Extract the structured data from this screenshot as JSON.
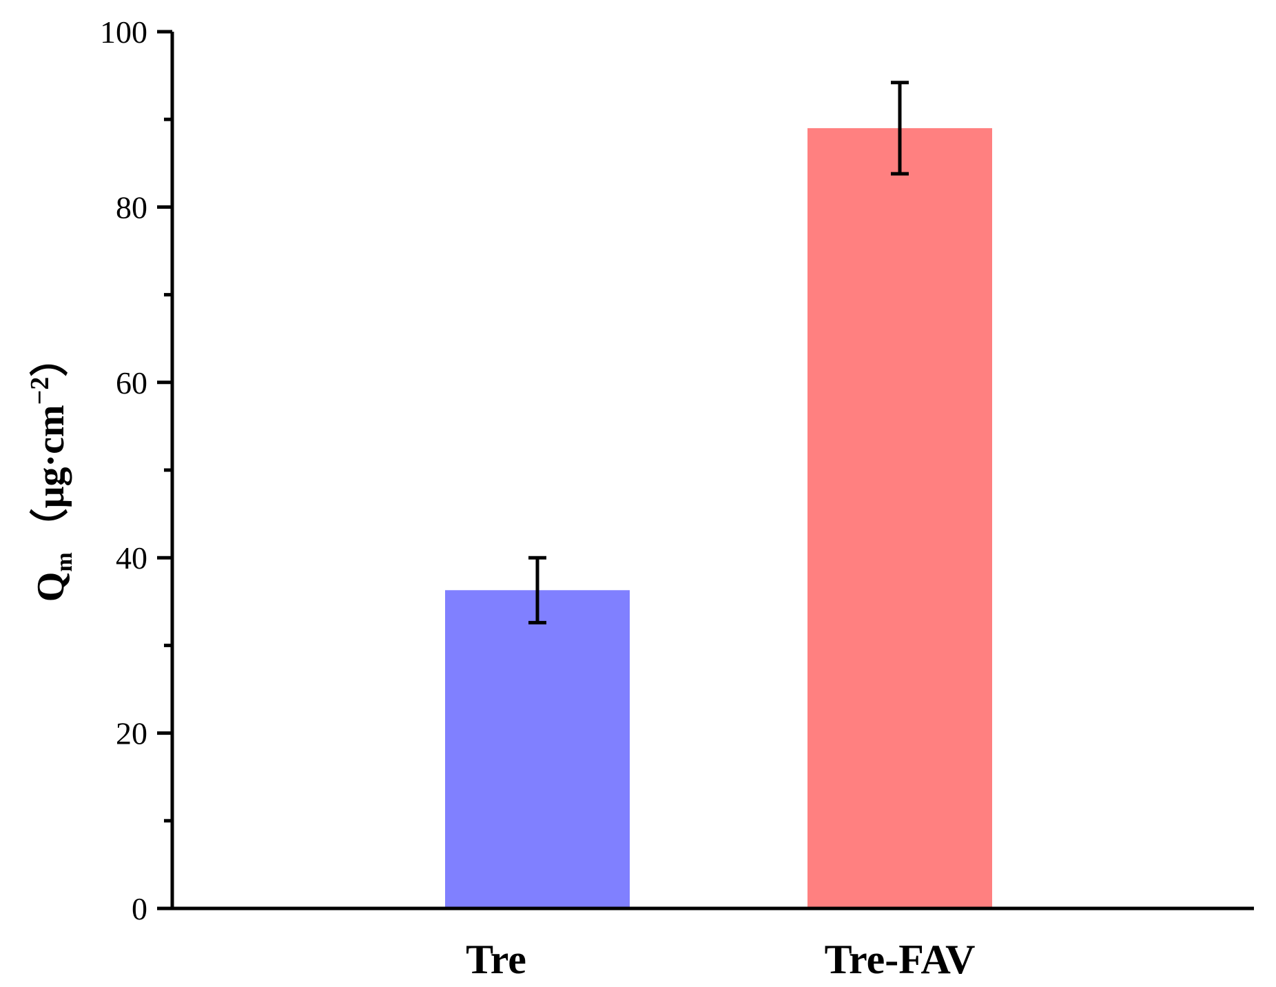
{
  "chart_data": {
    "type": "bar",
    "title": "",
    "xlabel": "",
    "ylabel": {
      "symbol": "Q",
      "subscript": "m",
      "unit_open": "（μg·cm",
      "unit_exponent": "−2",
      "unit_close": "）"
    },
    "categories": [
      "Tre",
      "Tre-FAV"
    ],
    "values": [
      36.3,
      89.0
    ],
    "errors": [
      3.7,
      5.2
    ],
    "colors": [
      "#8080ff",
      "#ff8080"
    ],
    "ylim": [
      0,
      100
    ],
    "major_ticks": [
      0,
      20,
      40,
      60,
      80,
      100
    ],
    "minor_ticks": [
      10,
      30,
      50,
      70,
      90
    ],
    "tick_labels": [
      "0",
      "20",
      "40",
      "60",
      "80",
      "100"
    ],
    "grid": false,
    "legend": "none"
  }
}
